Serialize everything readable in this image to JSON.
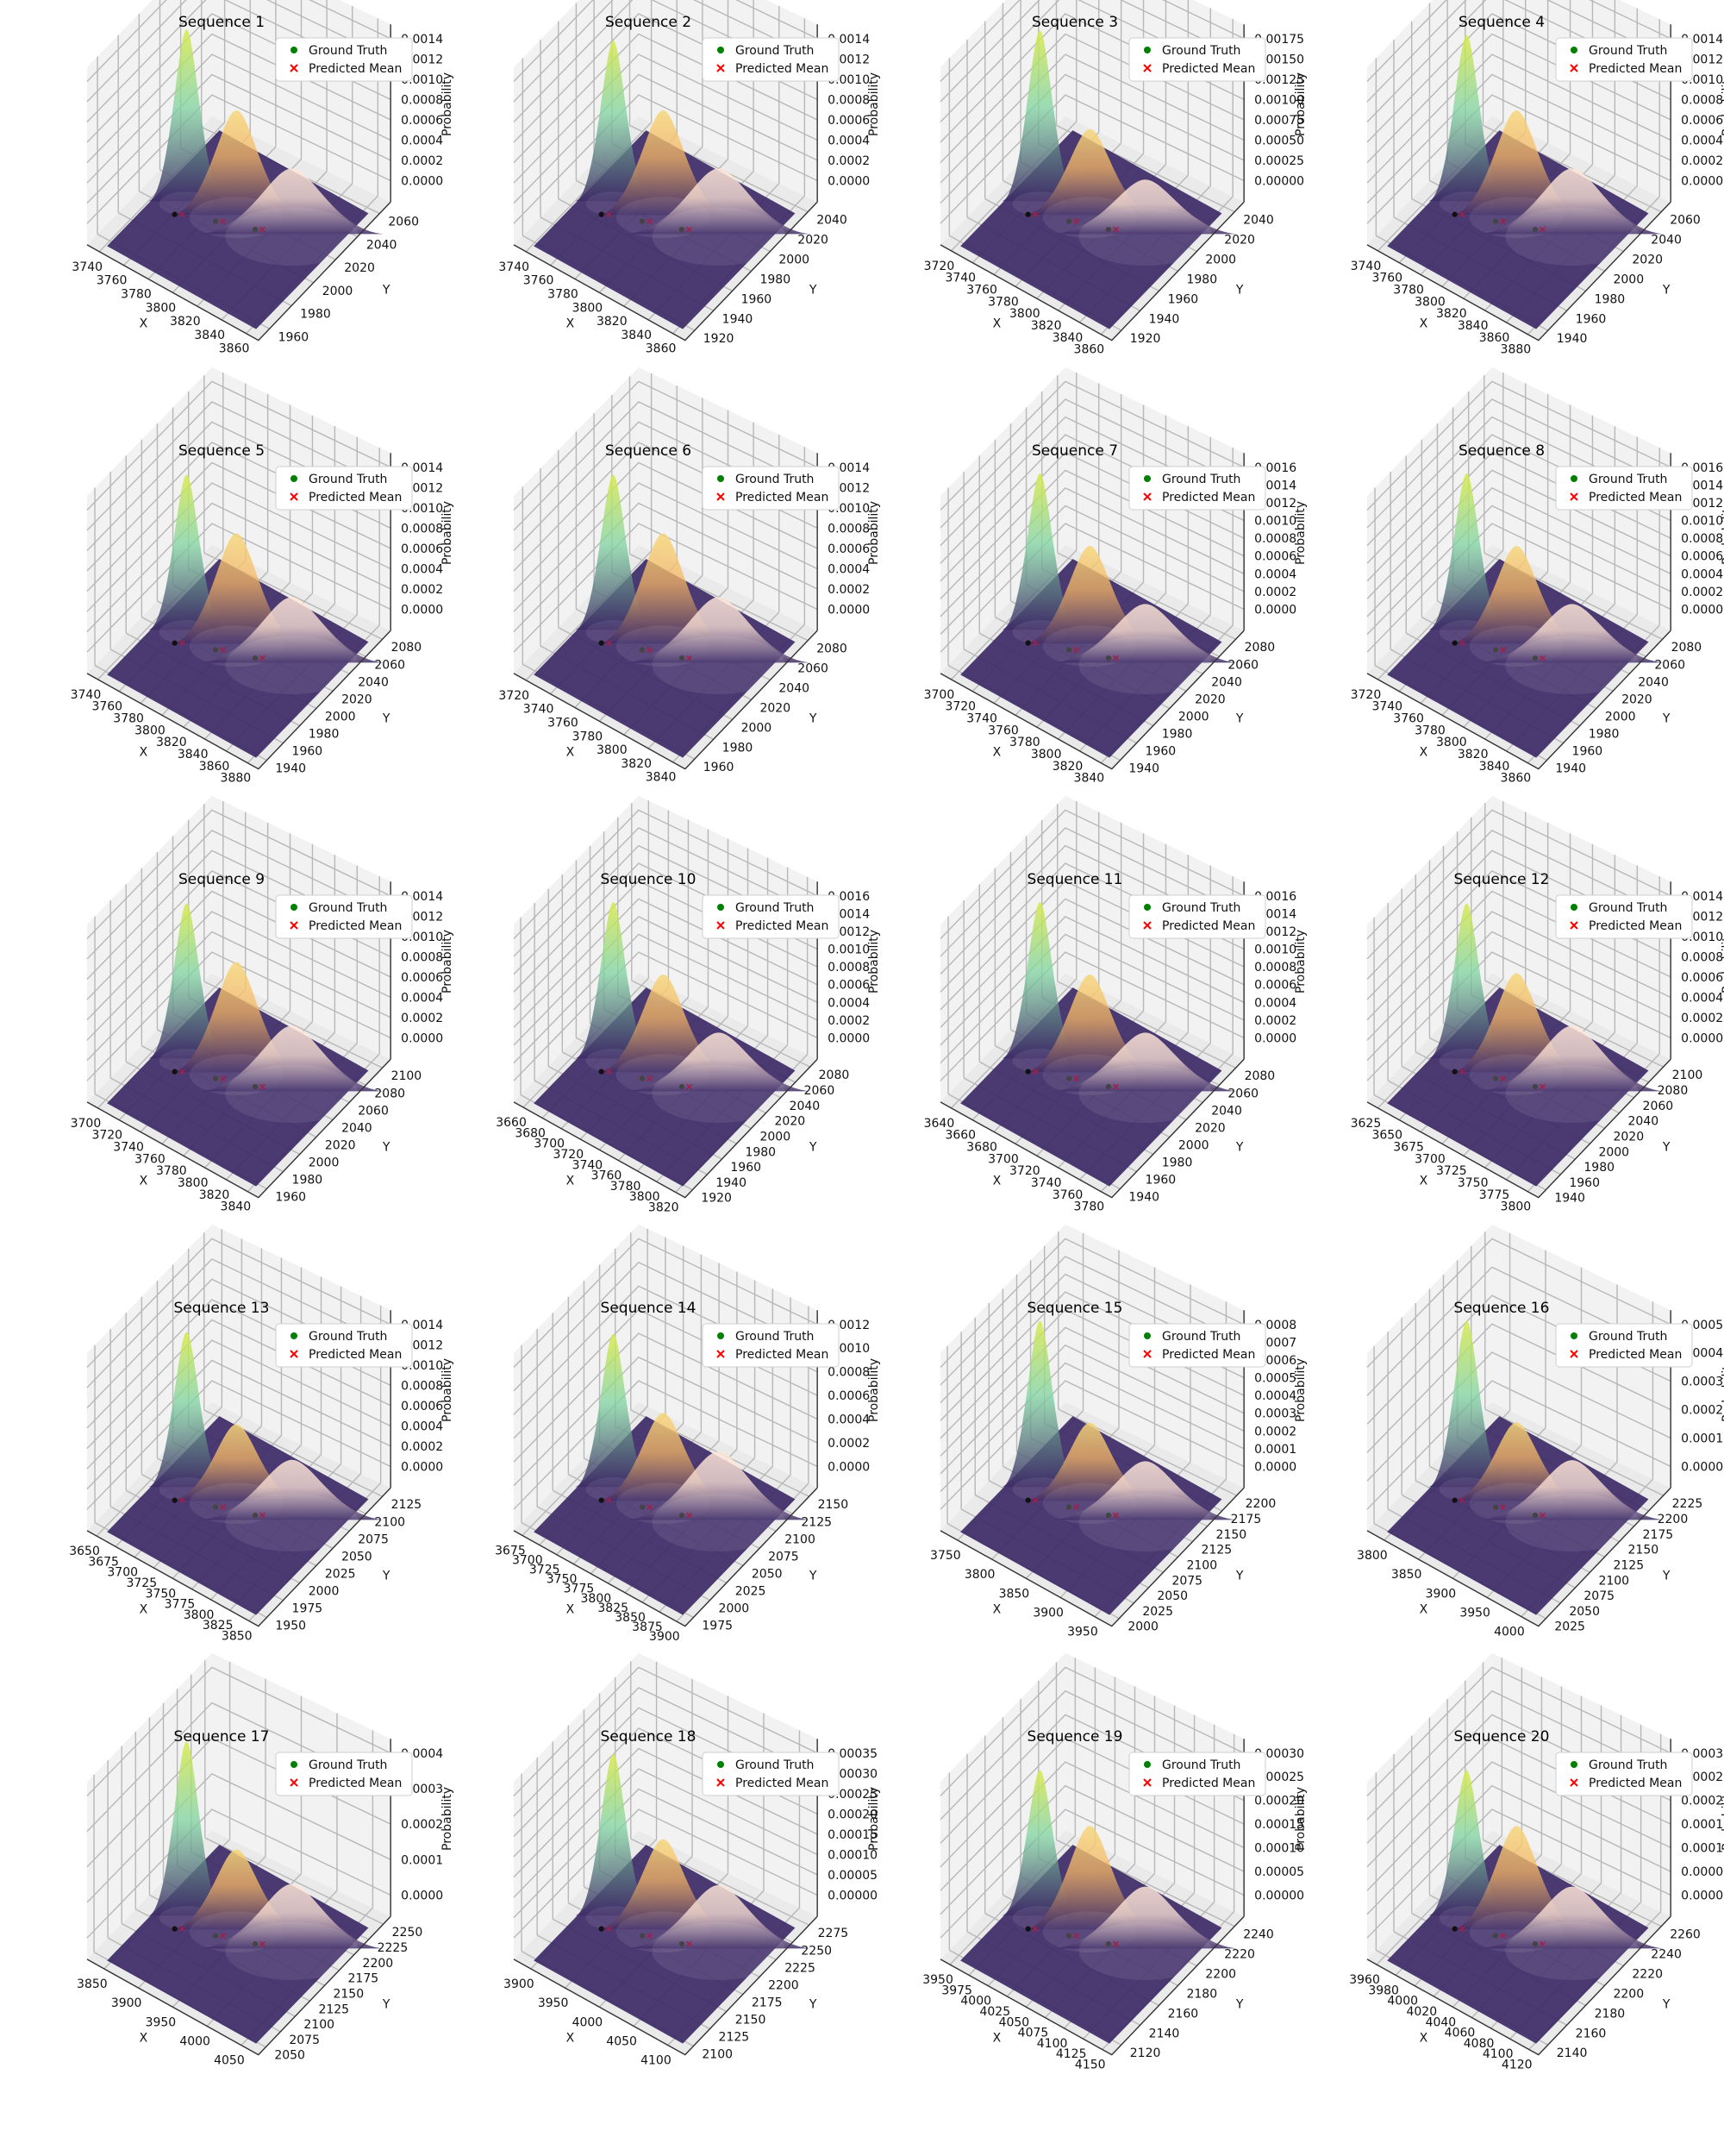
{
  "legend": {
    "ground_truth": "Ground Truth",
    "predicted_mean": "Predicted Mean"
  },
  "axis_labels": {
    "x": "X",
    "y": "Y",
    "z": "Probability"
  },
  "colors": {
    "ground_truth": "#008000",
    "predicted_mean": "#ff0000",
    "pane_wall": "#f2f2f2",
    "pane_floor": "#eaeaea",
    "base_plane": "#3d2a66",
    "viridis_peak": "#7fd3a0",
    "viridis_top": "#d9ea4a",
    "plasma_peak": "#f5b564",
    "plasma_top": "#f6d77a",
    "magma_blob": "#ffe6d8"
  },
  "chart_data": [
    {
      "type": "3d-surface",
      "title": "Sequence 1",
      "x_ticks": [
        "3740",
        "3760",
        "3780",
        "3800",
        "3820",
        "3840",
        "3860"
      ],
      "y_ticks": [
        "1960",
        "1980",
        "2000",
        "2020",
        "2040",
        "2060"
      ],
      "z_ticks": [
        "0.0000",
        "0.0002",
        "0.0004",
        "0.0006",
        "0.0008",
        "0.0010",
        "0.0012",
        "0.0014"
      ],
      "xlim": [
        3735,
        3870
      ],
      "ylim": [
        1950,
        2070
      ],
      "zlim": [
        0,
        0.0014
      ],
      "peaks": [
        0.00145,
        0.00085,
        0.0005
      ]
    },
    {
      "type": "3d-surface",
      "title": "Sequence 2",
      "x_ticks": [
        "3740",
        "3760",
        "3780",
        "3800",
        "3820",
        "3840",
        "3860"
      ],
      "y_ticks": [
        "1920",
        "1940",
        "1960",
        "1980",
        "2000",
        "2020",
        "2040"
      ],
      "z_ticks": [
        "0.0000",
        "0.0002",
        "0.0004",
        "0.0006",
        "0.0008",
        "0.0010",
        "0.0012",
        "0.0014"
      ],
      "xlim": [
        3735,
        3870
      ],
      "ylim": [
        1910,
        2050
      ],
      "zlim": [
        0,
        0.0014
      ],
      "peaks": [
        0.00135,
        0.00085,
        0.0005
      ]
    },
    {
      "type": "3d-surface",
      "title": "Sequence 3",
      "x_ticks": [
        "3720",
        "3740",
        "3760",
        "3780",
        "3800",
        "3820",
        "3840",
        "3860"
      ],
      "y_ticks": [
        "1920",
        "1940",
        "1960",
        "1980",
        "2000",
        "2020",
        "2040"
      ],
      "z_ticks": [
        "0.00000",
        "0.00025",
        "0.00050",
        "0.00075",
        "0.00100",
        "0.00125",
        "0.00150",
        "0.00175"
      ],
      "xlim": [
        3715,
        3865
      ],
      "ylim": [
        1910,
        2050
      ],
      "zlim": [
        0,
        0.00175
      ],
      "peaks": [
        0.0018,
        0.00085,
        0.0005
      ]
    },
    {
      "type": "3d-surface",
      "title": "Sequence 4",
      "x_ticks": [
        "3740",
        "3760",
        "3780",
        "3800",
        "3820",
        "3840",
        "3860",
        "3880"
      ],
      "y_ticks": [
        "1940",
        "1960",
        "1980",
        "2000",
        "2020",
        "2040",
        "2060"
      ],
      "z_ticks": [
        "0.0000",
        "0.0002",
        "0.0004",
        "0.0006",
        "0.0008",
        "0.0010",
        "0.0012",
        "0.0014"
      ],
      "xlim": [
        3735,
        3885
      ],
      "ylim": [
        1930,
        2070
      ],
      "zlim": [
        0,
        0.0014
      ],
      "peaks": [
        0.0014,
        0.00085,
        0.0005
      ]
    },
    {
      "type": "3d-surface",
      "title": "Sequence 5",
      "x_ticks": [
        "3740",
        "3760",
        "3780",
        "3800",
        "3820",
        "3840",
        "3860",
        "3880"
      ],
      "y_ticks": [
        "1940",
        "1960",
        "1980",
        "2000",
        "2020",
        "2040",
        "2060",
        "2080"
      ],
      "z_ticks": [
        "0.0000",
        "0.0002",
        "0.0004",
        "0.0006",
        "0.0008",
        "0.0010",
        "0.0012",
        "0.0014"
      ],
      "xlim": [
        3735,
        3885
      ],
      "ylim": [
        1930,
        2090
      ],
      "zlim": [
        0,
        0.0014
      ],
      "peaks": [
        0.0013,
        0.0009,
        0.0005
      ]
    },
    {
      "type": "3d-surface",
      "title": "Sequence 6",
      "x_ticks": [
        "3720",
        "3740",
        "3760",
        "3780",
        "3800",
        "3820",
        "3840"
      ],
      "y_ticks": [
        "1960",
        "1980",
        "2000",
        "2020",
        "2040",
        "2060",
        "2080"
      ],
      "z_ticks": [
        "0.0000",
        "0.0002",
        "0.0004",
        "0.0006",
        "0.0008",
        "0.0010",
        "0.0012",
        "0.0014"
      ],
      "xlim": [
        3715,
        3850
      ],
      "ylim": [
        1950,
        2090
      ],
      "zlim": [
        0,
        0.0014
      ],
      "peaks": [
        0.0013,
        0.0009,
        0.0005
      ]
    },
    {
      "type": "3d-surface",
      "title": "Sequence 7",
      "x_ticks": [
        "3700",
        "3720",
        "3740",
        "3760",
        "3780",
        "3800",
        "3820",
        "3840"
      ],
      "y_ticks": [
        "1940",
        "1960",
        "1980",
        "2000",
        "2020",
        "2040",
        "2060",
        "2080"
      ],
      "z_ticks": [
        "0.0000",
        "0.0002",
        "0.0004",
        "0.0006",
        "0.0008",
        "0.0010",
        "0.0012",
        "0.0014",
        "0.0016"
      ],
      "xlim": [
        3695,
        3845
      ],
      "ylim": [
        1930,
        2090
      ],
      "zlim": [
        0,
        0.0016
      ],
      "peaks": [
        0.0015,
        0.0009,
        0.0005
      ]
    },
    {
      "type": "3d-surface",
      "title": "Sequence 8",
      "x_ticks": [
        "3720",
        "3740",
        "3760",
        "3780",
        "3800",
        "3820",
        "3840",
        "3860"
      ],
      "y_ticks": [
        "1940",
        "1960",
        "1980",
        "2000",
        "2020",
        "2040",
        "2060",
        "2080"
      ],
      "z_ticks": [
        "0.0000",
        "0.0002",
        "0.0004",
        "0.0006",
        "0.0008",
        "0.0010",
        "0.0012",
        "0.0014",
        "0.0016"
      ],
      "xlim": [
        3715,
        3865
      ],
      "ylim": [
        1930,
        2090
      ],
      "zlim": [
        0,
        0.0016
      ],
      "peaks": [
        0.0015,
        0.0009,
        0.0005
      ]
    },
    {
      "type": "3d-surface",
      "title": "Sequence 9",
      "x_ticks": [
        "3700",
        "3720",
        "3740",
        "3760",
        "3780",
        "3800",
        "3820",
        "3840"
      ],
      "y_ticks": [
        "1960",
        "1980",
        "2000",
        "2020",
        "2040",
        "2060",
        "2080",
        "2100"
      ],
      "z_ticks": [
        "0.0000",
        "0.0002",
        "0.0004",
        "0.0006",
        "0.0008",
        "0.0010",
        "0.0012",
        "0.0014"
      ],
      "xlim": [
        3695,
        3845
      ],
      "ylim": [
        1950,
        2110
      ],
      "zlim": [
        0,
        0.0014
      ],
      "peaks": [
        0.0013,
        0.0009,
        0.0005
      ]
    },
    {
      "type": "3d-surface",
      "title": "Sequence 10",
      "x_ticks": [
        "3660",
        "3680",
        "3700",
        "3720",
        "3740",
        "3760",
        "3780",
        "3800",
        "3820"
      ],
      "y_ticks": [
        "1920",
        "1940",
        "1960",
        "1980",
        "2000",
        "2020",
        "2040",
        "2060",
        "2080"
      ],
      "z_ticks": [
        "0.0000",
        "0.0002",
        "0.0004",
        "0.0006",
        "0.0008",
        "0.0010",
        "0.0012",
        "0.0014",
        "0.0016"
      ],
      "xlim": [
        3655,
        3825
      ],
      "ylim": [
        1910,
        2090
      ],
      "zlim": [
        0,
        0.0016
      ],
      "peaks": [
        0.0015,
        0.0009,
        0.0005
      ]
    },
    {
      "type": "3d-surface",
      "title": "Sequence 11",
      "x_ticks": [
        "3640",
        "3660",
        "3680",
        "3700",
        "3720",
        "3740",
        "3760",
        "3780"
      ],
      "y_ticks": [
        "1940",
        "1960",
        "1980",
        "2000",
        "2020",
        "2040",
        "2060",
        "2080"
      ],
      "z_ticks": [
        "0.0000",
        "0.0002",
        "0.0004",
        "0.0006",
        "0.0008",
        "0.0010",
        "0.0012",
        "0.0014",
        "0.0016"
      ],
      "xlim": [
        3635,
        3785
      ],
      "ylim": [
        1930,
        2090
      ],
      "zlim": [
        0,
        0.0016
      ],
      "peaks": [
        0.0015,
        0.0009,
        0.0005
      ]
    },
    {
      "type": "3d-surface",
      "title": "Sequence 12",
      "x_ticks": [
        "3625",
        "3650",
        "3675",
        "3700",
        "3725",
        "3750",
        "3775",
        "3800"
      ],
      "y_ticks": [
        "1940",
        "1960",
        "1980",
        "2000",
        "2020",
        "2040",
        "2060",
        "2080",
        "2100"
      ],
      "z_ticks": [
        "0.0000",
        "0.0002",
        "0.0004",
        "0.0006",
        "0.0008",
        "0.0010",
        "0.0012",
        "0.0014"
      ],
      "xlim": [
        3615,
        3810
      ],
      "ylim": [
        1930,
        2110
      ],
      "zlim": [
        0,
        0.0014
      ],
      "peaks": [
        0.0013,
        0.0008,
        0.0005
      ]
    },
    {
      "type": "3d-surface",
      "title": "Sequence 13",
      "x_ticks": [
        "3650",
        "3675",
        "3700",
        "3725",
        "3750",
        "3775",
        "3800",
        "3825",
        "3850"
      ],
      "y_ticks": [
        "1950",
        "1975",
        "2000",
        "2025",
        "2050",
        "2075",
        "2100",
        "2125"
      ],
      "z_ticks": [
        "0.0000",
        "0.0002",
        "0.0004",
        "0.0006",
        "0.0008",
        "0.0010",
        "0.0012",
        "0.0014"
      ],
      "xlim": [
        3645,
        3860
      ],
      "ylim": [
        1940,
        2140
      ],
      "zlim": [
        0,
        0.0014
      ],
      "peaks": [
        0.0013,
        0.0006,
        0.00045
      ]
    },
    {
      "type": "3d-surface",
      "title": "Sequence 14",
      "x_ticks": [
        "3675",
        "3700",
        "3725",
        "3750",
        "3775",
        "3800",
        "3825",
        "3850",
        "3875",
        "3900"
      ],
      "y_ticks": [
        "1975",
        "2000",
        "2025",
        "2050",
        "2075",
        "2100",
        "2125",
        "2150"
      ],
      "z_ticks": [
        "0.0000",
        "0.0002",
        "0.0004",
        "0.0006",
        "0.0008",
        "0.0010",
        "0.0012"
      ],
      "xlim": [
        3665,
        3905
      ],
      "ylim": [
        1960,
        2160
      ],
      "zlim": [
        0,
        0.0012
      ],
      "peaks": [
        0.0011,
        0.0006,
        0.00045
      ]
    },
    {
      "type": "3d-surface",
      "title": "Sequence 15",
      "x_ticks": [
        "3750",
        "3800",
        "3850",
        "3900",
        "3950"
      ],
      "y_ticks": [
        "2000",
        "2025",
        "2050",
        "2075",
        "2100",
        "2125",
        "2150",
        "2175",
        "2200"
      ],
      "z_ticks": [
        "0.0000",
        "0.0001",
        "0.0002",
        "0.0003",
        "0.0004",
        "0.0005",
        "0.0006",
        "0.0007",
        "0.0008"
      ],
      "xlim": [
        3730,
        3960
      ],
      "ylim": [
        1990,
        2210
      ],
      "zlim": [
        0,
        0.0008
      ],
      "peaks": [
        0.0008,
        0.00035,
        0.00025
      ]
    },
    {
      "type": "3d-surface",
      "title": "Sequence 16",
      "x_ticks": [
        "3800",
        "3850",
        "3900",
        "3950",
        "4000"
      ],
      "y_ticks": [
        "2025",
        "2050",
        "2075",
        "2100",
        "2125",
        "2150",
        "2175",
        "2200",
        "2225"
      ],
      "z_ticks": [
        "0.0000",
        "0.0001",
        "0.0002",
        "0.0003",
        "0.0004",
        "0.0005"
      ],
      "xlim": [
        3780,
        4010
      ],
      "ylim": [
        2015,
        2235
      ],
      "zlim": [
        0,
        0.0005
      ],
      "peaks": [
        0.0005,
        0.00022,
        0.00016
      ]
    },
    {
      "type": "3d-surface",
      "title": "Sequence 17",
      "x_ticks": [
        "3850",
        "3900",
        "3950",
        "4000",
        "4050"
      ],
      "y_ticks": [
        "2050",
        "2075",
        "2100",
        "2125",
        "2150",
        "2175",
        "2200",
        "2225",
        "2250"
      ],
      "z_ticks": [
        "0.0000",
        "0.0001",
        "0.0002",
        "0.0003",
        "0.0004"
      ],
      "xlim": [
        3830,
        4060
      ],
      "ylim": [
        2040,
        2260
      ],
      "zlim": [
        0,
        0.0004
      ],
      "peaks": [
        0.00042,
        0.00018,
        0.00014
      ]
    },
    {
      "type": "3d-surface",
      "title": "Sequence 18",
      "x_ticks": [
        "3900",
        "3950",
        "4000",
        "4050",
        "4100"
      ],
      "y_ticks": [
        "2100",
        "2125",
        "2150",
        "2175",
        "2200",
        "2225",
        "2250",
        "2275"
      ],
      "z_ticks": [
        "0.00000",
        "0.00005",
        "0.00010",
        "0.00015",
        "0.00020",
        "0.00025",
        "0.00030",
        "0.00035"
      ],
      "xlim": [
        3880,
        4110
      ],
      "ylim": [
        2090,
        2285
      ],
      "zlim": [
        0,
        0.00035
      ],
      "peaks": [
        0.00034,
        0.00018,
        0.00012
      ]
    },
    {
      "type": "3d-surface",
      "title": "Sequence 19",
      "x_ticks": [
        "3950",
        "3975",
        "4000",
        "4025",
        "4050",
        "4075",
        "4100",
        "4125",
        "4150"
      ],
      "y_ticks": [
        "2120",
        "2140",
        "2160",
        "2180",
        "2200",
        "2220",
        "2240"
      ],
      "z_ticks": [
        "0.00000",
        "0.00005",
        "0.00010",
        "0.00015",
        "0.00020",
        "0.00025",
        "0.00030"
      ],
      "xlim": [
        3940,
        4155
      ],
      "ylim": [
        2110,
        2250
      ],
      "zlim": [
        0,
        0.0003
      ],
      "peaks": [
        0.00026,
        0.00018,
        0.0001
      ]
    },
    {
      "type": "3d-surface",
      "title": "Sequence 20",
      "x_ticks": [
        "3960",
        "3980",
        "4000",
        "4020",
        "4040",
        "4060",
        "4080",
        "4100",
        "4120"
      ],
      "y_ticks": [
        "2140",
        "2160",
        "2180",
        "2200",
        "2220",
        "2240",
        "2260"
      ],
      "z_ticks": [
        "0.00000",
        "0.00005",
        "0.00010",
        "0.00015",
        "0.00020",
        "0.00025",
        "0.00030"
      ],
      "xlim": [
        3950,
        4130
      ],
      "ylim": [
        2130,
        2270
      ],
      "zlim": [
        0,
        0.0003
      ],
      "peaks": [
        0.00026,
        0.00018,
        0.0001
      ]
    }
  ]
}
